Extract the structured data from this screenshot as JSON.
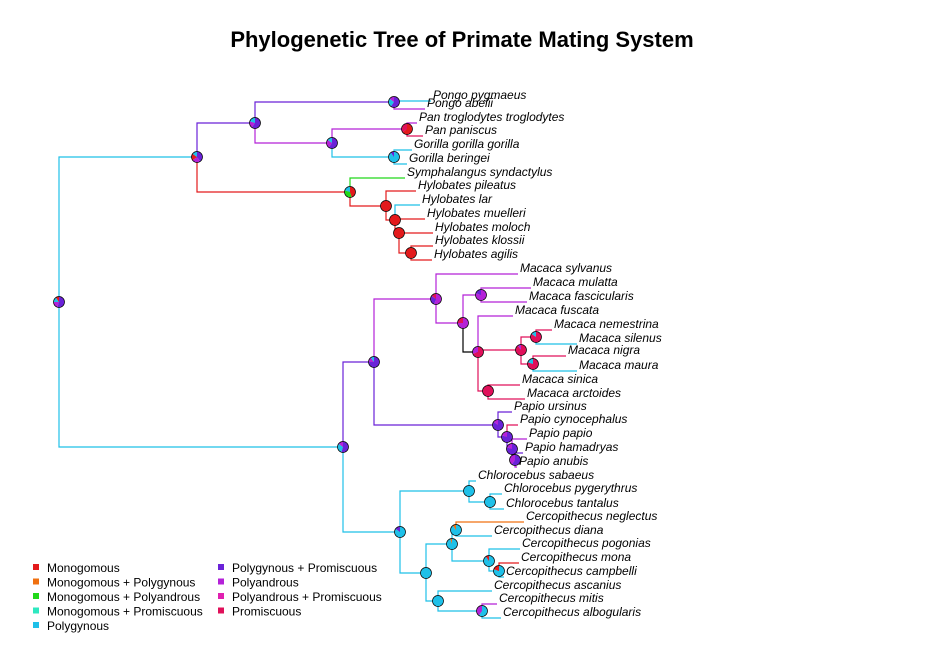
{
  "title": "Phylogenetic Tree of Primate Mating System",
  "colors": {
    "Monogomous": "#e31a1c",
    "Monogomous + Polygynous": "#f07010",
    "Monogomous + Polyandrous": "#22d81a",
    "Monogomous + Promiscuous": "#2ee8c0",
    "Polygynous": "#1ec0e8",
    "Polygynous + Promiscuous": "#6a22d8",
    "Polyandrous": "#b422d8",
    "Polyandrous + Promiscuous": "#e020b0",
    "Promiscuous": "#e0105a"
  },
  "legend": [
    {
      "label": "Monogomous",
      "key": "Monogomous"
    },
    {
      "label": "Monogomous + Polygynous",
      "key": "Monogomous + Polygynous"
    },
    {
      "label": "Monogomous + Polyandrous",
      "key": "Monogomous + Polyandrous"
    },
    {
      "label": "Monogomous + Promiscuous",
      "key": "Monogomous + Promiscuous"
    },
    {
      "label": "Polygynous",
      "key": "Polygynous"
    },
    {
      "label": "Polygynous + Promiscuous",
      "key": "Polygynous + Promiscuous"
    },
    {
      "label": "Polyandrous",
      "key": "Polyandrous"
    },
    {
      "label": "Polyandrous + Promiscuous",
      "key": "Polyandrous + Promiscuous"
    },
    {
      "label": "Promiscuous",
      "key": "Promiscuous"
    }
  ],
  "tips": [
    {
      "name": "Pongo pygmaeus",
      "state": "Polygynous"
    },
    {
      "name": "Pongo abelii",
      "state": "Polyandrous"
    },
    {
      "name": "Pan troglodytes troglodytes",
      "state": "Polyandrous"
    },
    {
      "name": "Pan paniscus",
      "state": "Promiscuous"
    },
    {
      "name": "Gorilla gorilla gorilla",
      "state": "Polygynous"
    },
    {
      "name": "Gorilla beringei",
      "state": "Polygynous"
    },
    {
      "name": "Symphalangus syndactylus",
      "state": "Monogomous + Polyandrous"
    },
    {
      "name": "Hylobates pileatus",
      "state": "Monogomous"
    },
    {
      "name": "Hylobates lar",
      "state": "Polygynous"
    },
    {
      "name": "Hylobates muelleri",
      "state": "Monogomous"
    },
    {
      "name": "Hylobates moloch",
      "state": "Monogomous"
    },
    {
      "name": "Hylobates klossii",
      "state": "Monogomous"
    },
    {
      "name": "Hylobates agilis",
      "state": "Monogomous"
    },
    {
      "name": "Macaca sylvanus",
      "state": "Polyandrous"
    },
    {
      "name": "Macaca mulatta",
      "state": "Polyandrous"
    },
    {
      "name": "Macaca fascicularis",
      "state": "Polyandrous"
    },
    {
      "name": "Macaca fuscata",
      "state": "Polyandrous"
    },
    {
      "name": "Macaca nemestrina",
      "state": "Promiscuous"
    },
    {
      "name": "Macaca silenus",
      "state": "Polygynous"
    },
    {
      "name": "Macaca nigra",
      "state": "Promiscuous"
    },
    {
      "name": "Macaca maura",
      "state": "Polygynous"
    },
    {
      "name": "Macaca sinica",
      "state": "Promiscuous"
    },
    {
      "name": "Macaca arctoides",
      "state": "Promiscuous"
    },
    {
      "name": "Papio ursinus",
      "state": "Polygynous + Promiscuous"
    },
    {
      "name": "Papio cynocephalus",
      "state": "Promiscuous"
    },
    {
      "name": "Papio papio",
      "state": "Polyandrous"
    },
    {
      "name": "Papio hamadryas",
      "state": "Polygynous + Promiscuous"
    },
    {
      "name": "Papio anubis",
      "state": "Polyandrous"
    },
    {
      "name": "Chlorocebus sabaeus",
      "state": "Polygynous"
    },
    {
      "name": "Chlorocebus pygerythrus",
      "state": "Polygynous"
    },
    {
      "name": "Chlorocebus tantalus",
      "state": "Polygynous"
    },
    {
      "name": "Cercopithecus neglectus",
      "state": "Monogomous + Polygynous"
    },
    {
      "name": "Cercopithecus diana",
      "state": "Polygynous"
    },
    {
      "name": "Cercopithecus pogonias",
      "state": "Polygynous"
    },
    {
      "name": "Cercopithecus mona",
      "state": "Monogomous"
    },
    {
      "name": "Cercopithecus campbelli",
      "state": "Polygynous"
    },
    {
      "name": "Cercopithecus ascanius",
      "state": "Polygynous"
    },
    {
      "name": "Cercopithecus mitis",
      "state": "Polyandrous"
    },
    {
      "name": "Cercopithecus albogularis",
      "state": "Polygynous"
    }
  ]
}
